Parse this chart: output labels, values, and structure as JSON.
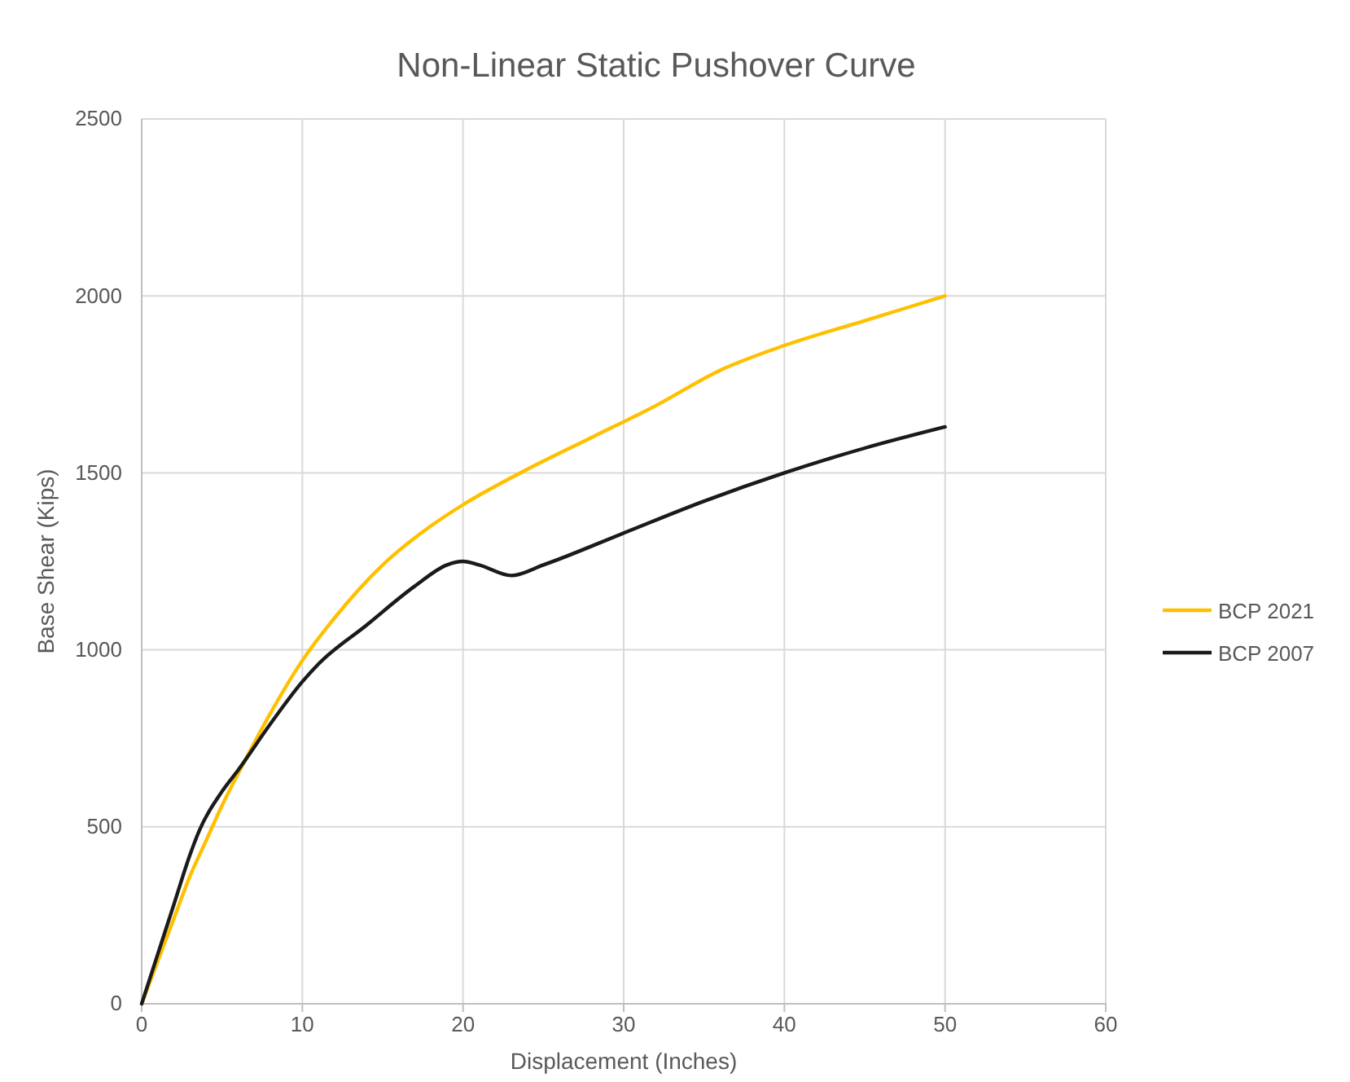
{
  "chart_data": {
    "type": "line",
    "title": "Non-Linear Static Pushover Curve",
    "xlabel": "Displacement (Inches)",
    "ylabel": "Base Shear (Kips)",
    "xlim": [
      0,
      60
    ],
    "xticks": [
      0,
      10,
      20,
      30,
      40,
      50,
      60
    ],
    "ylim": [
      0,
      2500
    ],
    "yticks": [
      0,
      500,
      1000,
      1500,
      2000,
      2500
    ],
    "grid": true,
    "legend": "right",
    "marker": "none",
    "line_style": "solid",
    "series": [
      {
        "name": "BCP 2021",
        "color": "#ffc000",
        "x": [
          0,
          1,
          2,
          3,
          4,
          5,
          6,
          8,
          10,
          12,
          15,
          18,
          20,
          24,
          28,
          32,
          36,
          40,
          45,
          50
        ],
        "values": [
          0,
          120,
          240,
          360,
          460,
          560,
          650,
          820,
          970,
          1090,
          1240,
          1350,
          1410,
          1510,
          1600,
          1690,
          1790,
          1860,
          1930,
          2000
        ]
      },
      {
        "name": "BCP 2007",
        "color": "#1a1a1a",
        "x": [
          0,
          1,
          2,
          3,
          3.5,
          5,
          6,
          8,
          10,
          11,
          14,
          17,
          19,
          20,
          21,
          23,
          25,
          30,
          35,
          40,
          45,
          50
        ],
        "values": [
          0,
          140,
          280,
          420,
          480,
          600,
          660,
          790,
          910,
          960,
          1070,
          1180,
          1240,
          1250,
          1240,
          1210,
          1240,
          1330,
          1420,
          1500,
          1570,
          1630
        ]
      }
    ]
  }
}
